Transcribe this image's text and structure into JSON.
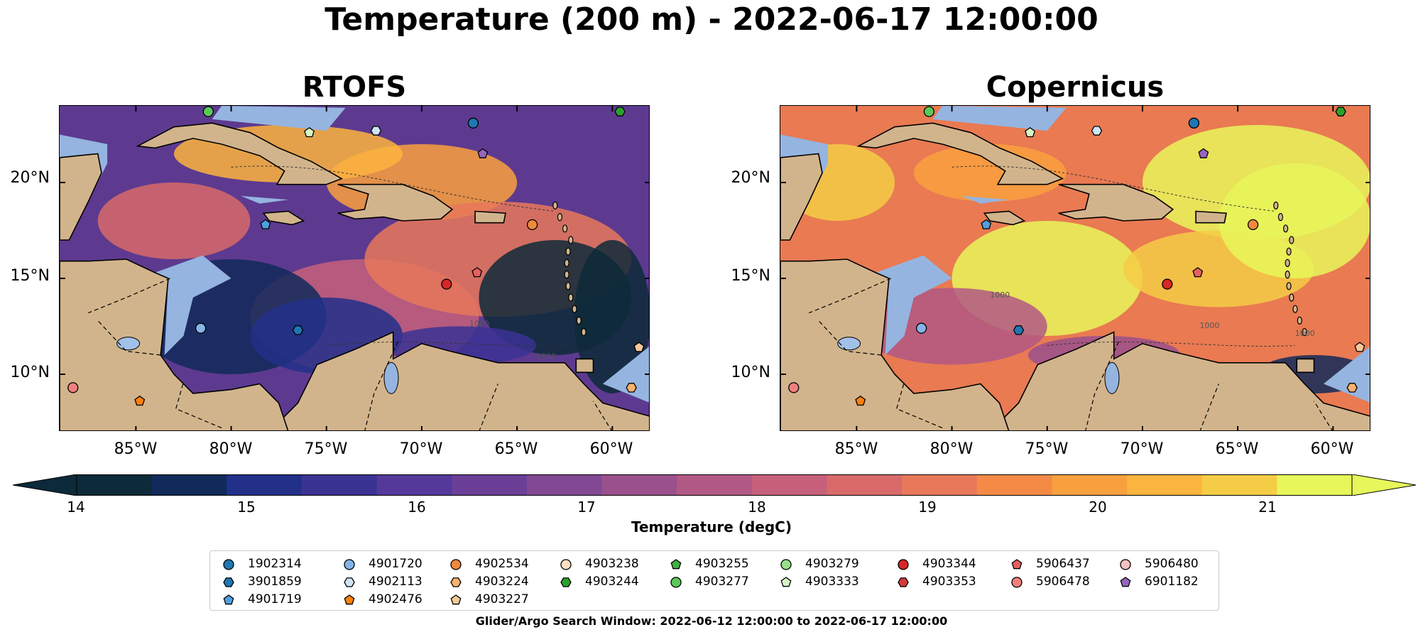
{
  "suptitle": "Temperature (200 m) - 2022-06-17 12:00:00",
  "panels": [
    {
      "title": "RTOFS",
      "sea_color": "#5d3a8f"
    },
    {
      "title": "Copernicus",
      "sea_color": "#e97a52"
    }
  ],
  "lat_ticks": [
    "20°N",
    "15°N",
    "10°N"
  ],
  "lon_ticks": [
    "85°W",
    "80°W",
    "75°W",
    "70°W",
    "65°W",
    "60°W"
  ],
  "contour_labels": {
    "rtofs": [
      "1000",
      "1000"
    ],
    "copernicus": [
      "1000",
      "1000",
      "1000"
    ]
  },
  "colorbar": {
    "label": "Temperature (degC)",
    "ticks": [
      "14",
      "15",
      "16",
      "17",
      "18",
      "19",
      "20",
      "21"
    ],
    "range": [
      14,
      21.5
    ],
    "colors": [
      "#0d2a3a",
      "#102a5a",
      "#22308a",
      "#3b3394",
      "#54399a",
      "#6b3f97",
      "#824893",
      "#9a508c",
      "#b25885",
      "#c6607b",
      "#d86a6a",
      "#e8785a",
      "#f48a46",
      "#f9a03e",
      "#fbb43e",
      "#f5cc45",
      "#e7f65a"
    ],
    "over_color": "#e7f65a",
    "under_color": "#0d2a3a"
  },
  "colors": {
    "land": "#d2b48c",
    "shallow": "#95b4e0",
    "lake": "#a3c0e8",
    "coast": "#000000"
  },
  "legend_items": [
    {
      "id": "1902314",
      "marker": "circle",
      "color": "#1f77b4"
    },
    {
      "id": "3901859",
      "marker": "hexagon",
      "color": "#1f77b4"
    },
    {
      "id": "4901719",
      "marker": "pentagon",
      "color": "#4f9fe0"
    },
    {
      "id": "4901720",
      "marker": "circle",
      "color": "#85b5e6"
    },
    {
      "id": "4902113",
      "marker": "hexagon",
      "color": "#cfe3f7"
    },
    {
      "id": "4902476",
      "marker": "pentagon",
      "color": "#ff7f0e"
    },
    {
      "id": "4902534",
      "marker": "circle",
      "color": "#f08a3c"
    },
    {
      "id": "4903224",
      "marker": "hexagon",
      "color": "#f7b26f"
    },
    {
      "id": "4903227",
      "marker": "pentagon",
      "color": "#f8c89a"
    },
    {
      "id": "4903238",
      "marker": "circle",
      "color": "#fde0c2"
    },
    {
      "id": "4903244",
      "marker": "hexagon",
      "color": "#2ca02c"
    },
    {
      "id": "4903255",
      "marker": "pentagon",
      "color": "#3fb03f"
    },
    {
      "id": "4903277",
      "marker": "circle",
      "color": "#5ac85a"
    },
    {
      "id": "4903279",
      "marker": "circle",
      "color": "#98df8a"
    },
    {
      "id": "4903333",
      "marker": "pentagon",
      "color": "#d4f7c8"
    },
    {
      "id": "4903344",
      "marker": "circle",
      "color": "#d62728"
    },
    {
      "id": "4903353",
      "marker": "hexagon",
      "color": "#d93838"
    },
    {
      "id": "5906437",
      "marker": "pentagon",
      "color": "#e66060"
    },
    {
      "id": "5906478",
      "marker": "circle",
      "color": "#f08080"
    },
    {
      "id": "5906480",
      "marker": "circle",
      "color": "#f8c0c0"
    },
    {
      "id": "6901182",
      "marker": "pentagon",
      "color": "#9467bd"
    }
  ],
  "float_positions": [
    {
      "id": "1902314",
      "lon": -67.3,
      "lat": 23.1
    },
    {
      "id": "4903244",
      "lon": -59.6,
      "lat": 23.7
    },
    {
      "id": "4903277",
      "lon": -81.2,
      "lat": 23.7
    },
    {
      "id": "4902113",
      "lon": -72.4,
      "lat": 22.7
    },
    {
      "id": "4903333",
      "lon": -75.9,
      "lat": 22.6
    },
    {
      "id": "6901182",
      "lon": -66.8,
      "lat": 21.5
    },
    {
      "id": "4901719",
      "lon": -78.2,
      "lat": 17.8
    },
    {
      "id": "4902534",
      "lon": -64.2,
      "lat": 17.8
    },
    {
      "id": "4903344",
      "lon": -68.7,
      "lat": 14.7
    },
    {
      "id": "5906437",
      "lon": -67.1,
      "lat": 15.3
    },
    {
      "id": "4901720",
      "lon": -81.6,
      "lat": 12.4
    },
    {
      "id": "3901859",
      "lon": -76.5,
      "lat": 12.3
    },
    {
      "id": "4903227",
      "lon": -58.6,
      "lat": 11.4
    },
    {
      "id": "5906478",
      "lon": -88.3,
      "lat": 9.3
    },
    {
      "id": "4902476",
      "lon": -84.8,
      "lat": 8.6
    },
    {
      "id": "4903224",
      "lon": -59.0,
      "lat": 9.3
    }
  ],
  "map_extent": {
    "lon": [
      -89,
      -58
    ],
    "lat": [
      7,
      24
    ]
  },
  "footnote": "Glider/Argo Search Window: 2022-06-12 12:00:00 to 2022-06-17 12:00:00"
}
